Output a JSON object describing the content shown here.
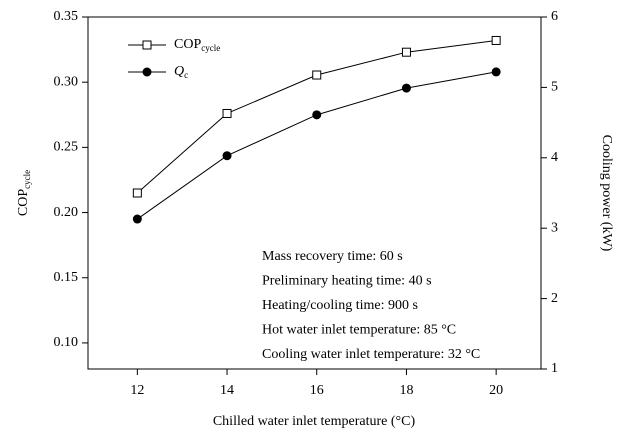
{
  "chart_data": {
    "type": "line",
    "x_label": "Chilled water inlet temperature (°C)",
    "y_label": "COP",
    "y_label_sub": "cycle",
    "y2_label": "Cooling power (kW)",
    "x": [
      12,
      14,
      16,
      18,
      20
    ],
    "series": [
      {
        "name": "COP",
        "name_sub": "cycle",
        "color": "#000",
        "marker": "square",
        "values": [
          0.215,
          0.276,
          0.3055,
          0.323,
          0.332
        ]
      },
      {
        "name": "Q",
        "name_sub": "c",
        "color": "#000",
        "marker": "circle",
        "axis": "y2",
        "values": [
          3.13,
          4.03,
          4.61,
          4.99,
          5.22
        ]
      }
    ],
    "xlim": [
      10.9,
      21
    ],
    "xticks": [
      12,
      14,
      16,
      18,
      20
    ],
    "ylim": [
      0.08,
      0.35
    ],
    "yticks": [
      {
        "value": 0.1,
        "label": "0.10"
      },
      0.15,
      {
        "value": 0.2,
        "label": "0.20"
      },
      0.25,
      {
        "value": 0.3,
        "label": "0.30"
      },
      0.35
    ],
    "y2lim": [
      1,
      6
    ],
    "y2ticks": [
      1,
      2,
      3,
      4,
      5,
      6
    ],
    "annotations": [
      "Mass recovery time: 60 s",
      "Preliminary heating time: 40 s",
      "Heating/cooling time: 900 s",
      "Hot water inlet temperature: 85 °C",
      "Cooling water inlet temperature: 32 °C"
    ],
    "legend": "upper left"
  }
}
